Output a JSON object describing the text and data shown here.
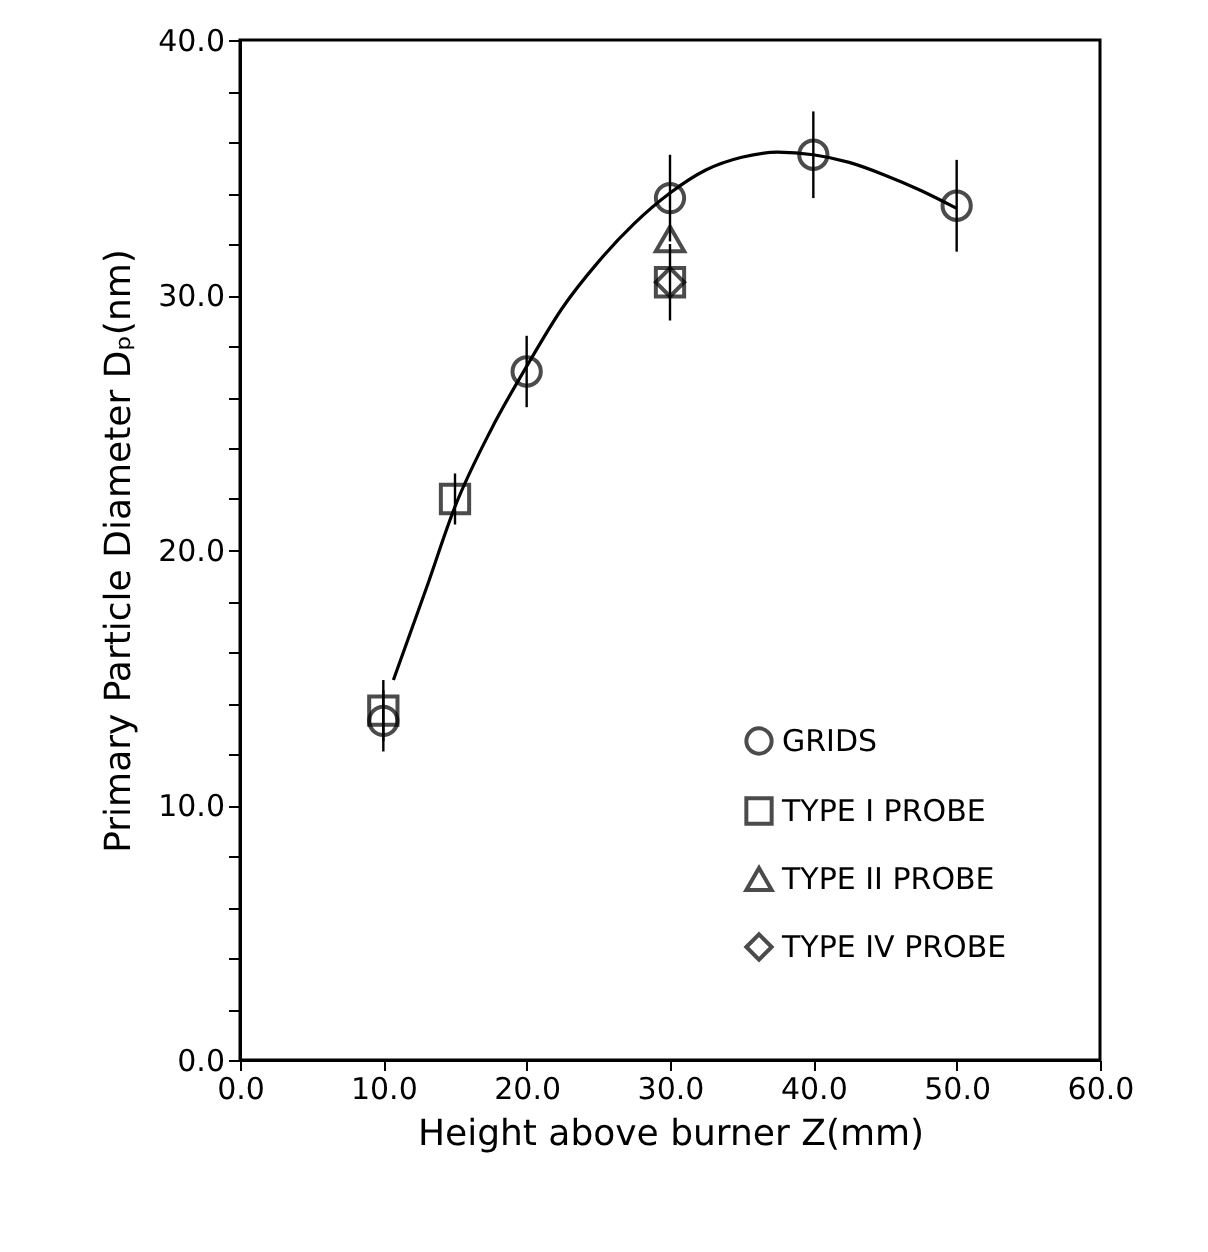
{
  "chart_data": {
    "type": "scatter",
    "xlabel": "Height above burner Z(mm)",
    "ylabel": "Primary Particle Diameter Dₚ(nm)",
    "xlim": [
      0,
      60
    ],
    "ylim": [
      0,
      40
    ],
    "xticks": [
      {
        "value": 0,
        "label": "0.0"
      },
      {
        "value": 10,
        "label": "10.0"
      },
      {
        "value": 20,
        "label": "20.0"
      },
      {
        "value": 30,
        "label": "30.0"
      },
      {
        "value": 40,
        "label": "40.0"
      },
      {
        "value": 50,
        "label": "50.0"
      },
      {
        "value": 60,
        "label": "60.0"
      }
    ],
    "yticks": [
      {
        "value": 0,
        "label": "0.0"
      },
      {
        "value": 2,
        "label": null
      },
      {
        "value": 4,
        "label": null
      },
      {
        "value": 6,
        "label": null
      },
      {
        "value": 8,
        "label": null
      },
      {
        "value": 10,
        "label": "10.0"
      },
      {
        "value": 12,
        "label": null
      },
      {
        "value": 14,
        "label": null
      },
      {
        "value": 16,
        "label": null
      },
      {
        "value": 18,
        "label": null
      },
      {
        "value": 20,
        "label": "20.0"
      },
      {
        "value": 22,
        "label": null
      },
      {
        "value": 24,
        "label": null
      },
      {
        "value": 26,
        "label": null
      },
      {
        "value": 28,
        "label": null
      },
      {
        "value": 30,
        "label": "30.0"
      },
      {
        "value": 32,
        "label": null
      },
      {
        "value": 34,
        "label": null
      },
      {
        "value": 36,
        "label": null
      },
      {
        "value": 38,
        "label": null
      },
      {
        "value": 40,
        "label": "40.0"
      }
    ],
    "grid": false,
    "legend": "bottom right",
    "series": [
      {
        "name": "GRIDS",
        "type": "scatter",
        "marker": "circle",
        "color": "#000000",
        "x": [
          10,
          20,
          30,
          40,
          50
        ],
        "values": [
          13.3,
          27,
          33.8,
          35.5,
          33.5
        ],
        "errors": [
          1.2,
          1.4,
          1.7,
          1.7,
          1.8
        ]
      },
      {
        "name": "TYPE I PROBE",
        "type": "scatter",
        "marker": "square",
        "color": "#000000",
        "x": [
          10,
          15,
          30
        ],
        "values": [
          13.7,
          22,
          30.5
        ],
        "errors": [
          1.2,
          1,
          null
        ]
      },
      {
        "name": "TYPE II PROBE",
        "type": "scatter",
        "marker": "triangle",
        "color": "#000000",
        "x": [
          30
        ],
        "values": [
          32.2
        ]
      },
      {
        "name": "TYPE IV PROBE",
        "type": "scatter",
        "marker": "diamond",
        "color": "#000000",
        "x": [
          30
        ],
        "values": [
          30.5
        ],
        "errors": [
          1.5
        ]
      },
      {
        "type": "line",
        "marker": "none",
        "line_style": "solid",
        "color": "#000000",
        "x": [
          10.7,
          13,
          15,
          17.5,
          20,
          22.5,
          25,
          27.5,
          30,
          32.5,
          35,
          37.5,
          40,
          42.5,
          45,
          47.5,
          50
        ],
        "values": [
          14.9,
          18.5,
          21.7,
          24.7,
          27.2,
          29.5,
          31.3,
          32.8,
          34.0,
          34.9,
          35.4,
          35.6,
          35.5,
          35.2,
          34.7,
          34.1,
          33.4
        ]
      }
    ]
  }
}
